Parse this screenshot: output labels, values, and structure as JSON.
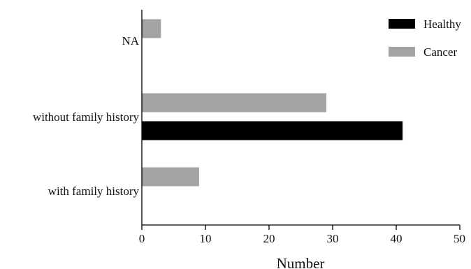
{
  "chart_data": {
    "type": "bar",
    "orientation": "horizontal",
    "categories": [
      "NA",
      "without family history",
      "with family history"
    ],
    "series": [
      {
        "name": "Healthy",
        "color": "#000000",
        "values": [
          0,
          41,
          0
        ]
      },
      {
        "name": "Cancer",
        "color": "#a3a3a6",
        "values": [
          3,
          29,
          9
        ]
      }
    ],
    "xlabel": "Number",
    "ylabel": "",
    "title": "",
    "xlim": [
      0,
      50
    ],
    "xticks": [
      "0",
      "10",
      "20",
      "30",
      "40",
      "50"
    ],
    "grid": false,
    "legend_position": "top-right"
  }
}
